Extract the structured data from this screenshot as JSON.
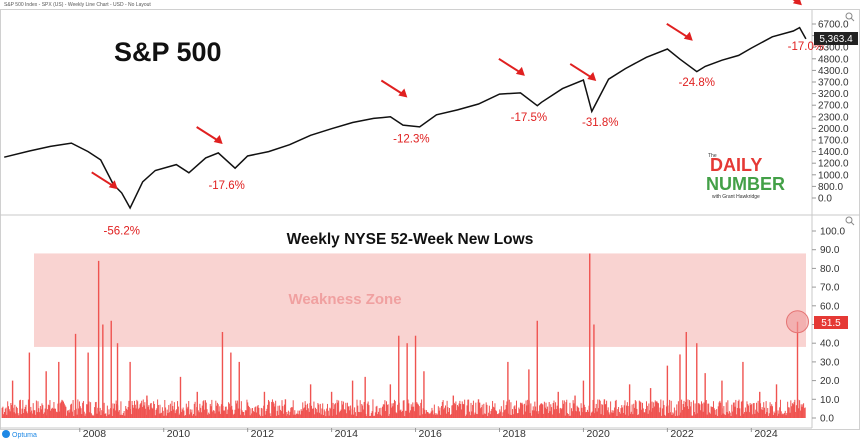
{
  "header_text": "S&P 500 Index - SPX (US) - Weekly Line Chart - USD - No Layout",
  "footer_brand": "Optuma",
  "brand": {
    "small": "The",
    "word1": "DAILY",
    "word2": "NUMBER",
    "tagline": "with Grant Hawkridge"
  },
  "colors": {
    "price": "#111111",
    "bars": "#ef5350",
    "zone": "#f8c8c6",
    "annotation": "#e02020",
    "flag_dark": "#222222",
    "flag_red": "#e53935"
  },
  "chart_data": [
    {
      "type": "line",
      "title": "S&P 500",
      "y_scale": "log",
      "yticks": [
        6700.0,
        6000.0,
        5300.0,
        4800.0,
        4300.0,
        3700.0,
        3200.0,
        2700.0,
        2300.0,
        2000.0,
        1700.0,
        1400.0,
        1200.0,
        1000.0,
        800.0,
        0.0
      ],
      "ytick_labels": [
        "6700.0",
        "6000.0",
        "5300.0",
        "4800.0",
        "4300.0",
        "3700.0",
        "3200.0",
        "2700.0",
        "2300.0",
        "2000.0",
        "1700.0",
        "1400.0",
        "1200.0",
        "1000.0",
        "800.0",
        "0.0"
      ],
      "last_value_label": "5,363.4",
      "x": [
        2006.2,
        2006.8,
        2007.3,
        2007.8,
        2008.2,
        2008.5,
        2008.8,
        2009.0,
        2009.2,
        2009.5,
        2009.8,
        2010.3,
        2010.6,
        2011.0,
        2011.3,
        2011.7,
        2012.0,
        2012.5,
        2013.0,
        2013.5,
        2014.0,
        2014.5,
        2015.0,
        2015.4,
        2015.7,
        2016.1,
        2016.5,
        2017.0,
        2017.5,
        2018.0,
        2018.5,
        2018.9,
        2019.0,
        2019.5,
        2020.0,
        2020.2,
        2020.6,
        2021.0,
        2021.5,
        2022.0,
        2022.3,
        2022.7,
        2022.9,
        2023.3,
        2023.7,
        2024.0,
        2024.5,
        2025.0,
        2025.15,
        2025.3
      ],
      "y": [
        1290,
        1390,
        1470,
        1530,
        1380,
        1250,
        930,
        840,
        700,
        960,
        1100,
        1180,
        1070,
        1280,
        1360,
        1130,
        1310,
        1380,
        1500,
        1680,
        1820,
        1960,
        2060,
        2100,
        1900,
        1860,
        2150,
        2280,
        2450,
        2760,
        2800,
        2400,
        2500,
        2950,
        3270,
        2240,
        3300,
        3750,
        4300,
        4750,
        4200,
        3620,
        3850,
        4150,
        4400,
        4800,
        5500,
        5900,
        6150,
        5363
      ],
      "annotations": [
        {
          "label": "-56.2%",
          "x": 2009.0,
          "y": 510
        },
        {
          "label": "-17.6%",
          "x": 2011.5,
          "y": 880
        },
        {
          "label": "-12.3%",
          "x": 2015.9,
          "y": 1540
        },
        {
          "label": "-17.5%",
          "x": 2018.7,
          "y": 2000
        },
        {
          "label": "-31.8%",
          "x": 2020.4,
          "y": 1880
        },
        {
          "label": "-24.8%",
          "x": 2022.7,
          "y": 3050
        },
        {
          "label": "-17.0%",
          "x": 2025.3,
          "y": 4680
        }
      ]
    },
    {
      "type": "bar",
      "title": "Weekly NYSE 52-Week New Lows",
      "ylim": [
        0,
        100
      ],
      "yticks": [
        100.0,
        90.0,
        80.0,
        70.0,
        60.0,
        50.0,
        40.0,
        30.0,
        20.0,
        10.0,
        0.0
      ],
      "ytick_labels": [
        "100.0",
        "90.0",
        "80.0",
        "70.0",
        "60.0",
        "50.0",
        "40.0",
        "30.0",
        "20.0",
        "10.0",
        "0.0"
      ],
      "last_value_label": "51.5",
      "zone": {
        "label": "Weakness Zone",
        "from": 38,
        "to": 88
      },
      "highlight": {
        "x": 2025.1,
        "y": 51.5
      },
      "xticks": [
        2008,
        2010,
        2012,
        2014,
        2016,
        2018,
        2020,
        2022,
        2024
      ],
      "xtick_labels": [
        "2008",
        "2010",
        "2012",
        "2014",
        "2016",
        "2018",
        "2020",
        "2022",
        "2024"
      ],
      "spikes": [
        [
          2006.4,
          20
        ],
        [
          2006.8,
          35
        ],
        [
          2007.2,
          25
        ],
        [
          2007.5,
          30
        ],
        [
          2007.9,
          45
        ],
        [
          2008.2,
          35
        ],
        [
          2008.45,
          84
        ],
        [
          2008.55,
          50
        ],
        [
          2008.75,
          52
        ],
        [
          2008.9,
          40
        ],
        [
          2009.2,
          30
        ],
        [
          2009.6,
          12
        ],
        [
          2010.4,
          22
        ],
        [
          2010.8,
          14
        ],
        [
          2011.4,
          46
        ],
        [
          2011.6,
          35
        ],
        [
          2011.8,
          30
        ],
        [
          2012.4,
          14
        ],
        [
          2012.9,
          10
        ],
        [
          2013.5,
          18
        ],
        [
          2014.0,
          14
        ],
        [
          2014.5,
          20
        ],
        [
          2014.8,
          22
        ],
        [
          2015.4,
          18
        ],
        [
          2015.6,
          44
        ],
        [
          2015.8,
          40
        ],
        [
          2016.0,
          44
        ],
        [
          2016.2,
          25
        ],
        [
          2016.9,
          12
        ],
        [
          2017.5,
          10
        ],
        [
          2018.2,
          30
        ],
        [
          2018.7,
          26
        ],
        [
          2018.9,
          52
        ],
        [
          2019.4,
          14
        ],
        [
          2019.8,
          12
        ],
        [
          2020.0,
          20
        ],
        [
          2020.15,
          88
        ],
        [
          2020.25,
          50
        ],
        [
          2020.5,
          10
        ],
        [
          2021.1,
          18
        ],
        [
          2021.6,
          16
        ],
        [
          2022.0,
          28
        ],
        [
          2022.3,
          34
        ],
        [
          2022.45,
          46
        ],
        [
          2022.7,
          40
        ],
        [
          2022.9,
          24
        ],
        [
          2023.3,
          20
        ],
        [
          2023.8,
          30
        ],
        [
          2024.2,
          14
        ],
        [
          2024.6,
          18
        ],
        [
          2025.1,
          51.5
        ]
      ]
    }
  ]
}
